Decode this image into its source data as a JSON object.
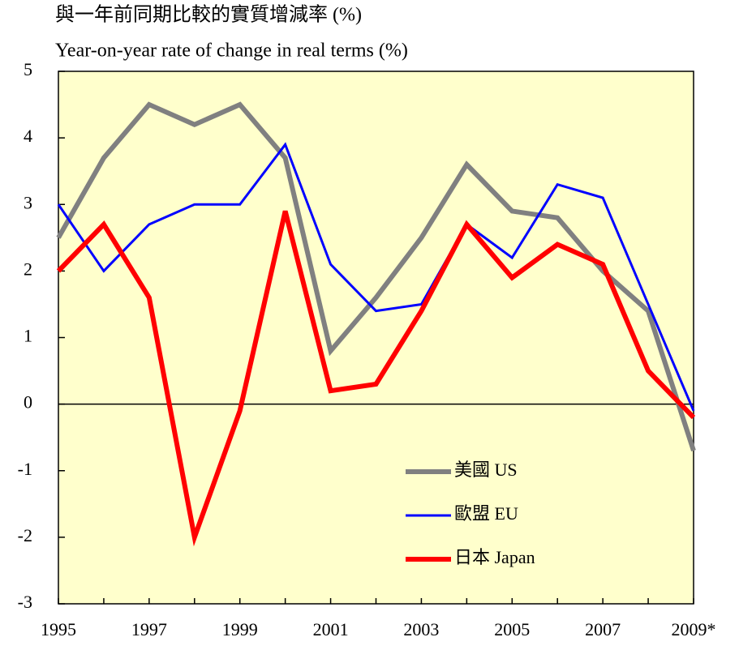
{
  "chart_data": {
    "type": "line",
    "title": "與一年前同期比較的實質增減率 (%)",
    "subtitle": "Year-on-year rate of change in real terms (%)",
    "categories": [
      "1995",
      null,
      "1997",
      null,
      "1999",
      null,
      "2001",
      null,
      "2003",
      null,
      "2005",
      null,
      "2007",
      null,
      "2009*"
    ],
    "series": [
      {
        "name": "美國 US",
        "color": "#808080",
        "linewidth": 6,
        "values": [
          2.5,
          3.7,
          4.5,
          4.2,
          4.5,
          3.7,
          0.8,
          1.6,
          2.5,
          3.6,
          2.9,
          2.8,
          2.0,
          1.4,
          -0.7
        ]
      },
      {
        "name": "歐盟 EU",
        "color": "#0000ff",
        "linewidth": 3,
        "values": [
          3.0,
          2.0,
          2.7,
          3.0,
          3.0,
          3.9,
          2.1,
          1.4,
          1.5,
          2.7,
          2.2,
          3.3,
          3.1,
          1.5,
          -0.1
        ]
      },
      {
        "name": "日本 Japan",
        "color": "#ff0000",
        "linewidth": 6,
        "values": [
          2.0,
          2.7,
          1.6,
          -2.0,
          -0.1,
          2.9,
          0.2,
          0.3,
          1.4,
          2.7,
          1.9,
          2.4,
          2.1,
          0.5,
          -0.2
        ]
      }
    ],
    "ylim": [
      -3,
      5
    ],
    "yticks": [
      -3,
      -2,
      -1,
      0,
      1,
      2,
      3,
      4,
      5
    ],
    "background": "#ffffcc",
    "legend": "lower right"
  }
}
